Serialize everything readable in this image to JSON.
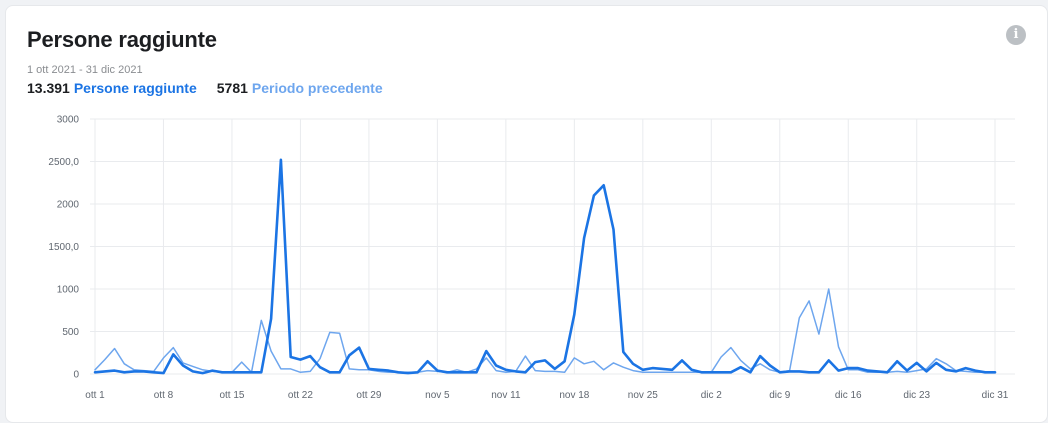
{
  "card": {
    "title": "Persone raggiunte",
    "info_icon": "info-icon",
    "date_range": "1 ott 2021 - 31 dic 2021",
    "summary": {
      "current_value": "13.391",
      "current_label": "Persone raggiunte",
      "previous_value": "5781",
      "previous_label": "Periodo precedente"
    }
  },
  "colors": {
    "current": "#1b74e4",
    "previous": "#6ea6ee",
    "grid": "#e9ebee"
  },
  "chart_data": {
    "type": "line",
    "x_start": "ott 1",
    "x_end": "dic 31",
    "x_ticks": [
      "ott 1",
      "ott 8",
      "ott 15",
      "ott 22",
      "ott 29",
      "nov 5",
      "nov 11",
      "nov 18",
      "nov 25",
      "dic 2",
      "dic 9",
      "dic 16",
      "dic 23",
      "dic 31"
    ],
    "y_ticks": [
      "0",
      "500",
      "1000",
      "1500,0",
      "2000",
      "2500,0",
      "3000"
    ],
    "ylim": [
      0,
      3000
    ],
    "grid": true,
    "series": [
      {
        "name": "Persone raggiunte",
        "values": [
          20,
          30,
          40,
          20,
          30,
          30,
          20,
          10,
          230,
          100,
          30,
          10,
          40,
          20,
          20,
          20,
          20,
          20,
          650,
          2520,
          200,
          170,
          210,
          80,
          20,
          20,
          220,
          310,
          60,
          50,
          40,
          20,
          10,
          20,
          150,
          40,
          20,
          20,
          20,
          20,
          270,
          100,
          50,
          30,
          20,
          140,
          160,
          60,
          150,
          700,
          1600,
          2100,
          2220,
          1700,
          260,
          120,
          50,
          70,
          60,
          50,
          160,
          50,
          20,
          20,
          20,
          20,
          80,
          20,
          210,
          100,
          20,
          30,
          30,
          20,
          20,
          160,
          40,
          70,
          70,
          40,
          30,
          20,
          150,
          40,
          130,
          30,
          130,
          50,
          30,
          70,
          40,
          20,
          20
        ]
      },
      {
        "name": "Periodo precedente",
        "values": [
          50,
          170,
          300,
          120,
          50,
          40,
          30,
          190,
          310,
          130,
          90,
          50,
          30,
          20,
          20,
          140,
          20,
          630,
          270,
          60,
          60,
          20,
          30,
          180,
          490,
          480,
          60,
          50,
          50,
          30,
          20,
          20,
          20,
          20,
          40,
          30,
          20,
          50,
          20,
          60,
          190,
          40,
          20,
          30,
          210,
          40,
          30,
          30,
          20,
          190,
          120,
          150,
          50,
          130,
          80,
          40,
          20,
          20,
          20,
          20,
          20,
          20,
          20,
          20,
          200,
          310,
          160,
          60,
          120,
          50,
          20,
          40,
          660,
          860,
          470,
          1000,
          320,
          50,
          50,
          20,
          20,
          20,
          30,
          20,
          40,
          60,
          180,
          120,
          40,
          30,
          20,
          20,
          20
        ]
      }
    ]
  }
}
